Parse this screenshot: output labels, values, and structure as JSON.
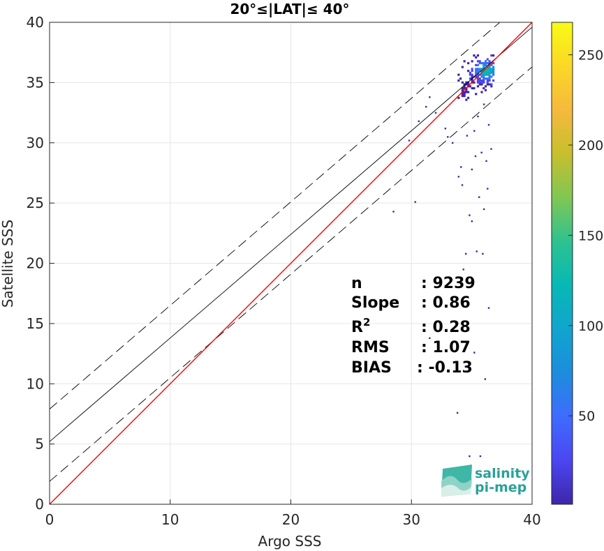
{
  "chart_data": {
    "type": "scatter",
    "title": "20°≤|LAT|≤ 40°",
    "xlabel": "Argo SSS",
    "ylabel": "Satellite SSS",
    "xlim": [
      0,
      40
    ],
    "ylim": [
      0,
      40
    ],
    "xticks": [
      "0",
      "10",
      "20",
      "30",
      "40"
    ],
    "yticks": [
      "0",
      "5",
      "10",
      "15",
      "20",
      "25",
      "30",
      "35",
      "40"
    ],
    "grid": true,
    "reference_lines": {
      "one_to_one": {
        "slope": 1,
        "intercept": 0,
        "color": "#ff0000"
      },
      "regression": {
        "slope": 0.86,
        "intercept": 5.2,
        "color": "#000000"
      },
      "upper_bound": {
        "slope": 0.86,
        "intercept": 7.9,
        "color": "#000000",
        "style": "dashed"
      },
      "lower_bound": {
        "slope": 0.86,
        "intercept": 1.9,
        "color": "#000000",
        "style": "dashed"
      }
    },
    "density_core": {
      "x_range": [
        33.5,
        36.8
      ],
      "y_range": [
        33.5,
        37.2
      ]
    },
    "outliers": [
      [
        29.8,
        30.2
      ],
      [
        30.6,
        31.8
      ],
      [
        31.2,
        33.0
      ],
      [
        32.0,
        32.5
      ],
      [
        31.5,
        33.8
      ],
      [
        33.0,
        30.5
      ],
      [
        33.9,
        27.2
      ],
      [
        34.2,
        26.5
      ],
      [
        35.0,
        27.8
      ],
      [
        35.8,
        29.2
      ],
      [
        36.2,
        28.5
      ],
      [
        35.2,
        31.0
      ],
      [
        35.6,
        25.5
      ],
      [
        36.0,
        24.5
      ],
      [
        35.0,
        23.5
      ],
      [
        34.8,
        24.0
      ],
      [
        35.4,
        21.0
      ],
      [
        34.5,
        20.8
      ],
      [
        35.9,
        20.8
      ],
      [
        36.3,
        26.2
      ],
      [
        36.6,
        29.5
      ],
      [
        34.3,
        19.5
      ],
      [
        36.4,
        16.3
      ],
      [
        35.2,
        12.6
      ],
      [
        31.5,
        13.8
      ],
      [
        36.1,
        10.4
      ],
      [
        33.8,
        7.6
      ],
      [
        34.8,
        4.0
      ],
      [
        35.7,
        4.0
      ],
      [
        28.5,
        24.3
      ],
      [
        30.3,
        25.1
      ],
      [
        33.4,
        30.0
      ],
      [
        34.6,
        30.6
      ],
      [
        32.8,
        31.2
      ],
      [
        35.5,
        32.2
      ],
      [
        36.4,
        31.5
      ],
      [
        36.0,
        33.2
      ],
      [
        34.1,
        28.0
      ],
      [
        35.3,
        28.9
      ]
    ],
    "colorbar": {
      "ticks": [
        "50",
        "100",
        "150",
        "200",
        "250"
      ],
      "range": [
        1,
        268
      ],
      "colormap": [
        "#3e26a8",
        "#4b46f2",
        "#3e6cfe",
        "#1c8ddd",
        "#11a5ce",
        "#07b8b5",
        "#2ec28f",
        "#80c753",
        "#c7bf2e",
        "#f6b93e",
        "#fbd725",
        "#f9fb15"
      ]
    },
    "stats": [
      {
        "label": "n",
        "value": ": 9239"
      },
      {
        "label": "Slope",
        "value": ": 0.86"
      },
      {
        "label": "R",
        "sup": "2",
        "value": ": 0.28"
      },
      {
        "label": "RMS",
        "value": ": 1.07"
      },
      {
        "label": "BIAS",
        "value": ": -0.13"
      }
    ]
  },
  "logo": {
    "line1": "salinity",
    "line2": "pi-mep"
  }
}
